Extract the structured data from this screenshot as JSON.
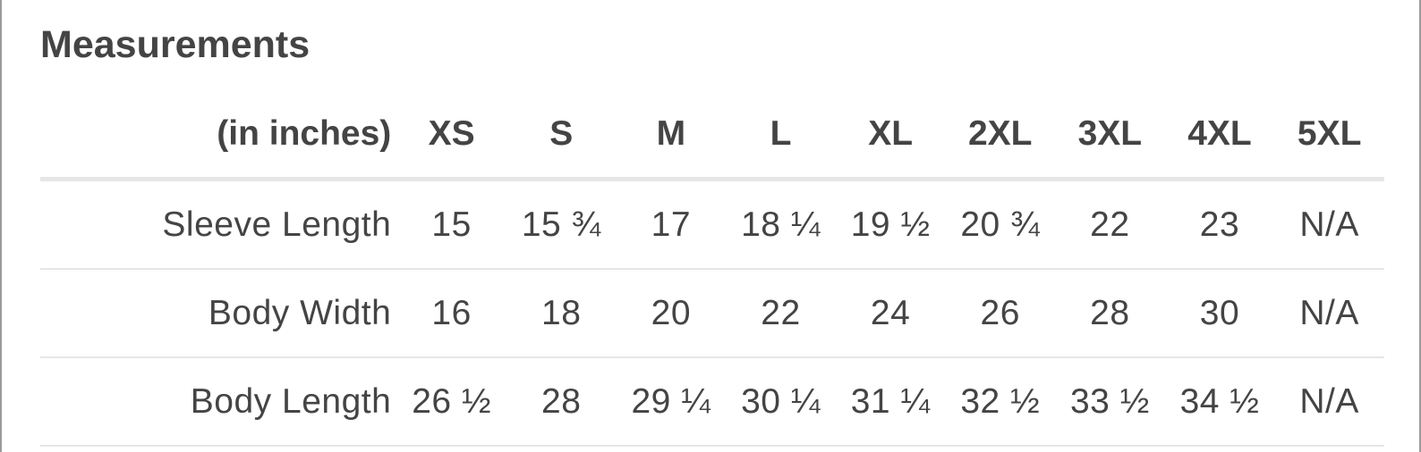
{
  "title": "Measurements",
  "table": {
    "unit_label": "(in inches)",
    "sizes": [
      "XS",
      "S",
      "M",
      "L",
      "XL",
      "2XL",
      "3XL",
      "4XL",
      "5XL"
    ],
    "rows": [
      {
        "label": "Sleeve Length",
        "values": [
          "15",
          "15 ¾",
          "17",
          "18 ¼",
          "19 ½",
          "20 ¾",
          "22",
          "23",
          "N/A"
        ]
      },
      {
        "label": "Body Width",
        "values": [
          "16",
          "18",
          "20",
          "22",
          "24",
          "26",
          "28",
          "30",
          "N/A"
        ]
      },
      {
        "label": "Body Length",
        "values": [
          "26 ½",
          "28",
          "29 ¼",
          "30 ¼",
          "31 ¼",
          "32 ½",
          "33 ½",
          "34 ½",
          "N/A"
        ]
      }
    ]
  }
}
